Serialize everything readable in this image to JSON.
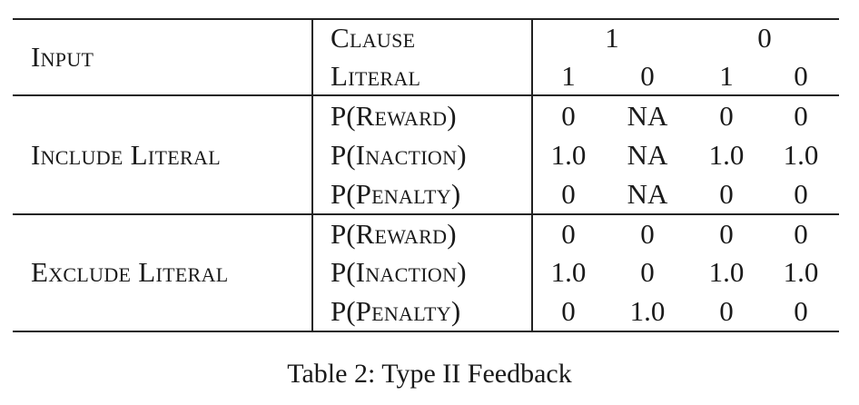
{
  "table": {
    "input_label": "Input",
    "clause_label": "Clause",
    "literal_label": "Literal",
    "clause_values": [
      "1",
      "0"
    ],
    "literal_values": [
      "1",
      "0",
      "1",
      "0"
    ],
    "groups": [
      {
        "label": "Include Literal",
        "rows": [
          {
            "label_prefix": "P(",
            "label_word": "Reward",
            "label_suffix": ")",
            "values": [
              "0",
              "NA",
              "0",
              "0"
            ]
          },
          {
            "label_prefix": "P(",
            "label_word": "Inaction",
            "label_suffix": ")",
            "values": [
              "1.0",
              "NA",
              "1.0",
              "1.0"
            ]
          },
          {
            "label_prefix": "P(",
            "label_word": "Penalty",
            "label_suffix": ")",
            "values": [
              "0",
              "NA",
              "0",
              "0"
            ]
          }
        ]
      },
      {
        "label": "Exclude Literal",
        "rows": [
          {
            "label_prefix": "P(",
            "label_word": "Reward",
            "label_suffix": ")",
            "values": [
              "0",
              "0",
              "0",
              "0"
            ]
          },
          {
            "label_prefix": "P(",
            "label_word": "Inaction",
            "label_suffix": ")",
            "values": [
              "1.0",
              "0",
              "1.0",
              "1.0"
            ]
          },
          {
            "label_prefix": "P(",
            "label_word": "Penalty",
            "label_suffix": ")",
            "values": [
              "0",
              "1.0",
              "0",
              "0"
            ]
          }
        ]
      }
    ]
  },
  "caption": "Table 2: Type II Feedback"
}
